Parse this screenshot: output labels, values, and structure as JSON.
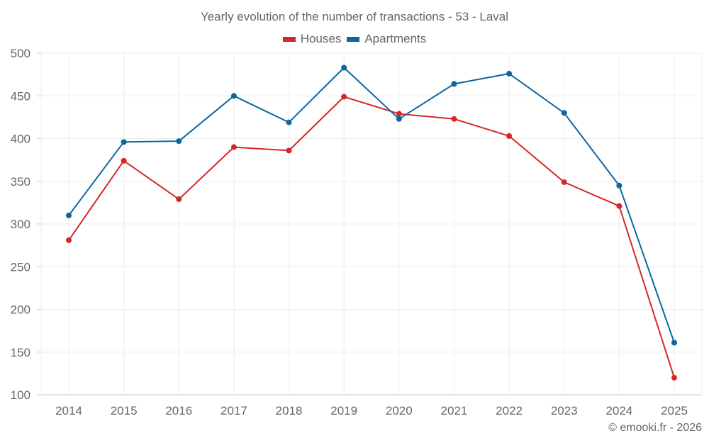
{
  "chart_data": {
    "type": "line",
    "title": "Yearly evolution of the number of transactions - 53 - Laval",
    "xlabel": "",
    "ylabel": "",
    "categories": [
      "2014",
      "2015",
      "2016",
      "2017",
      "2018",
      "2019",
      "2020",
      "2021",
      "2022",
      "2023",
      "2024",
      "2025"
    ],
    "ylim": [
      100,
      500
    ],
    "yticks": [
      100,
      150,
      200,
      250,
      300,
      350,
      400,
      450,
      500
    ],
    "grid": true,
    "legend_position": "top-center",
    "series": [
      {
        "name": "Houses",
        "color": "#d62728",
        "values": [
          281,
          374,
          329,
          390,
          386,
          449,
          429,
          423,
          403,
          349,
          321,
          120
        ]
      },
      {
        "name": "Apartments",
        "color": "#0b67a0",
        "values": [
          310,
          396,
          397,
          450,
          419,
          483,
          423,
          464,
          476,
          430,
          345,
          161
        ]
      }
    ]
  },
  "credit": "© emooki.fr - 2026"
}
